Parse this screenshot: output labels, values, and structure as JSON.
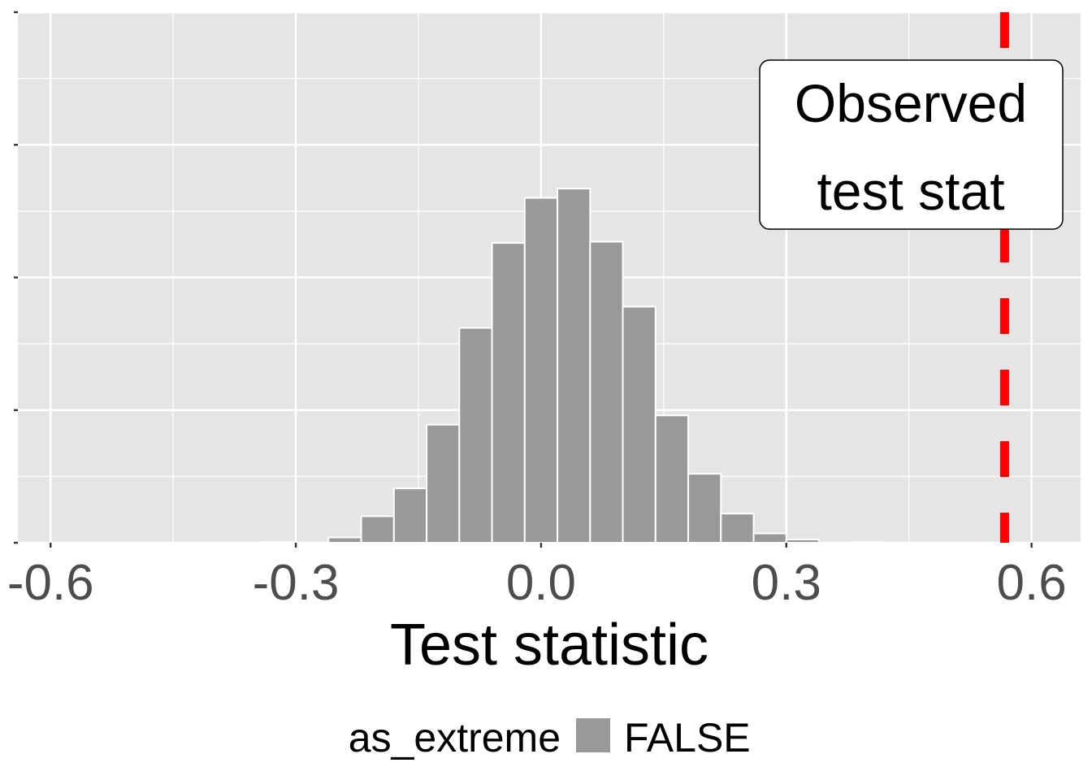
{
  "chart_data": {
    "type": "bar",
    "title": "",
    "xlabel": "Test statistic",
    "ylabel": "",
    "xlim": [
      -0.64,
      0.66
    ],
    "ylim": [
      0,
      400
    ],
    "x_ticks": [
      -0.6,
      -0.3,
      0.0,
      0.3,
      0.6
    ],
    "x_tick_labels": [
      "-0.6",
      "-0.3",
      "0.0",
      "0.3",
      "0.6"
    ],
    "y_ticks": [
      0,
      100,
      200,
      300,
      400
    ],
    "bin_width": 0.04,
    "bins": [
      {
        "x": -0.32,
        "count": 0.5
      },
      {
        "x": -0.28,
        "count": 0
      },
      {
        "x": -0.24,
        "count": 4
      },
      {
        "x": -0.2,
        "count": 20
      },
      {
        "x": -0.16,
        "count": 41
      },
      {
        "x": -0.12,
        "count": 89
      },
      {
        "x": -0.08,
        "count": 162
      },
      {
        "x": -0.04,
        "count": 226
      },
      {
        "x": 0.0,
        "count": 260
      },
      {
        "x": 0.04,
        "count": 267
      },
      {
        "x": 0.08,
        "count": 227
      },
      {
        "x": 0.12,
        "count": 178
      },
      {
        "x": 0.16,
        "count": 96
      },
      {
        "x": 0.2,
        "count": 52
      },
      {
        "x": 0.24,
        "count": 22
      },
      {
        "x": 0.28,
        "count": 7
      },
      {
        "x": 0.32,
        "count": 2.5
      },
      {
        "x": 0.36,
        "count": 0
      },
      {
        "x": 0.4,
        "count": 0.5
      }
    ],
    "series": [
      {
        "name": "FALSE",
        "color": "#999999"
      }
    ],
    "observed_line": {
      "x": 0.567,
      "color": "#ff0000",
      "style": "dashed"
    },
    "annotation": {
      "lines": [
        "Observed",
        "test stat"
      ]
    },
    "legend": {
      "title": "as_extreme",
      "position": "bottom",
      "items": [
        {
          "label": "FALSE",
          "color": "#999999"
        }
      ]
    },
    "panel_background": "#e5e5e5",
    "grid": true
  }
}
